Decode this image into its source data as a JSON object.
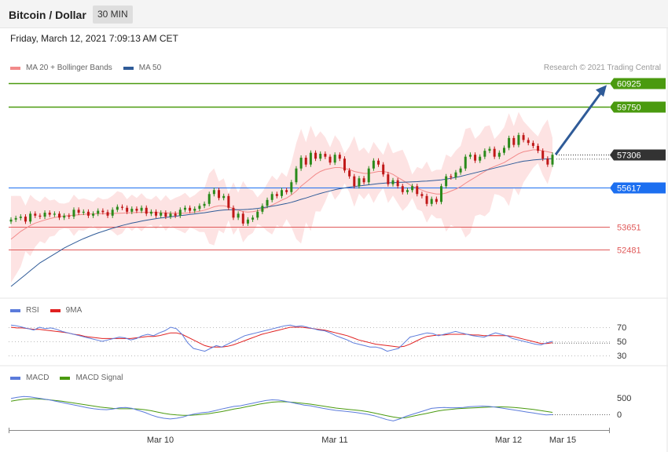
{
  "header": {
    "title": "Bitcoin / Dollar",
    "timeframe": "30 MIN"
  },
  "timestamp": "Friday, March 12, 2021 7:09:13 AM CET",
  "credit": "Research © 2021 Trading Central",
  "colors": {
    "ma20": "#f28a8a",
    "ma50": "#2f5b98",
    "bands": "#fde3e3",
    "resistance": "#4a9a0f",
    "pivot": "#1c6ff0",
    "support": "#e05a5a",
    "last": "#333333",
    "rsi": "#5b7bdb",
    "rsi_ma": "#e02020",
    "macd": "#5b7bdb",
    "signal": "#4a9a0f",
    "candle_up": "#2a8a1a",
    "candle_down": "#c01818",
    "arrow": "#2f5b98"
  },
  "price_legend": [
    {
      "label": "MA 20 + Bollinger Bands",
      "color": "#f28a8a"
    },
    {
      "label": "MA 50",
      "color": "#2f5b98"
    }
  ],
  "rsi_legend": [
    {
      "label": "RSI",
      "color": "#5b7bdb"
    },
    {
      "label": "9MA",
      "color": "#e02020"
    }
  ],
  "macd_legend": [
    {
      "label": "MACD",
      "color": "#5b7bdb"
    },
    {
      "label": "MACD Signal",
      "color": "#4a9a0f"
    }
  ],
  "chart_data": [
    {
      "type": "candlestick",
      "name": "price",
      "levels": [
        {
          "value": 60925,
          "label": "60925",
          "kind": "resistance"
        },
        {
          "value": 59750,
          "label": "59750",
          "kind": "resistance"
        },
        {
          "value": 57306,
          "label": "57306",
          "kind": "last"
        },
        {
          "value": 55617,
          "label": "55617",
          "kind": "pivot"
        },
        {
          "value": 53651,
          "label": "53651",
          "kind": "support"
        },
        {
          "value": 52481,
          "label": "52481",
          "kind": "support"
        }
      ],
      "close": [
        54000,
        54080,
        54150,
        53900,
        54300,
        54200,
        54150,
        54350,
        54250,
        54300,
        54100,
        54200,
        54150,
        54500,
        54350,
        54400,
        54200,
        54300,
        54450,
        54380,
        54200,
        54500,
        54650,
        54600,
        54400,
        54550,
        54450,
        54600,
        54300,
        54400,
        54200,
        54350,
        54150,
        54300,
        54200,
        54500,
        54600,
        54450,
        54550,
        54700,
        54800,
        55300,
        55500,
        55100,
        55200,
        54600,
        54100,
        54300,
        53800,
        54000,
        54100,
        54400,
        54700,
        55000,
        55300,
        55200,
        55500,
        55400,
        55900,
        56600,
        57150,
        56800,
        57400,
        57100,
        57350,
        57200,
        56900,
        57300,
        57100,
        56500,
        56200,
        55700,
        56100,
        55900,
        56600,
        57000,
        56800,
        56300,
        55800,
        56000,
        55700,
        55400,
        55500,
        55700,
        55300,
        55200,
        54800,
        55050,
        54900,
        55700,
        56200,
        56150,
        56400,
        56600,
        57200,
        57300,
        57000,
        57200,
        57500,
        57600,
        57200,
        57400,
        57650,
        58150,
        57800,
        58300,
        58050,
        57900,
        57750,
        57500,
        57100,
        56800,
        57300
      ],
      "ma20": [
        53000,
        53200,
        53400,
        53550,
        53700,
        53820,
        53900,
        53980,
        54050,
        54100,
        54150,
        54180,
        54200,
        54220,
        54240,
        54260,
        54280,
        54290,
        54300,
        54300,
        54300,
        54310,
        54320,
        54330,
        54340,
        54350,
        54360,
        54370,
        54370,
        54370,
        54360,
        54350,
        54340,
        54330,
        54320,
        54320,
        54330,
        54350,
        54380,
        54420,
        54480,
        54560,
        54650,
        54700,
        54700,
        54650,
        54560,
        54480,
        54400,
        54380,
        54400,
        54450,
        54520,
        54620,
        54740,
        54860,
        54990,
        55100,
        55250,
        55450,
        55700,
        55900,
        56100,
        56300,
        56450,
        56550,
        56600,
        56650,
        56650,
        56600,
        56550,
        56450,
        56400,
        56350,
        56350,
        56400,
        56450,
        56450,
        56400,
        56300,
        56150,
        56000,
        55850,
        55700,
        55600,
        55500,
        55400,
        55350,
        55300,
        55300,
        55350,
        55450,
        55550,
        55680,
        55850,
        56000,
        56150,
        56300,
        56450,
        56600,
        56700,
        56800,
        56900,
        57050,
        57200,
        57350,
        57450,
        57500,
        57550,
        57550,
        57500,
        57450,
        57400
      ],
      "ma50": [
        50600,
        50800,
        51000,
        51200,
        51400,
        51600,
        51800,
        51950,
        52100,
        52250,
        52400,
        52550,
        52680,
        52800,
        52920,
        53030,
        53130,
        53230,
        53320,
        53400,
        53480,
        53560,
        53630,
        53700,
        53760,
        53820,
        53870,
        53920,
        53970,
        54010,
        54050,
        54080,
        54110,
        54140,
        54170,
        54200,
        54230,
        54260,
        54290,
        54320,
        54350,
        54390,
        54430,
        54460,
        54490,
        54500,
        54500,
        54500,
        54510,
        54520,
        54540,
        54570,
        54600,
        54640,
        54680,
        54720,
        54770,
        54820,
        54880,
        54950,
        55030,
        55100,
        55180,
        55260,
        55330,
        55400,
        55460,
        55520,
        55570,
        55610,
        55650,
        55680,
        55710,
        55740,
        55770,
        55800,
        55830,
        55850,
        55870,
        55880,
        55890,
        55900,
        55910,
        55920,
        55930,
        55950,
        55960,
        55980,
        56000,
        56020,
        56060,
        56100,
        56150,
        56200,
        56260,
        56320,
        56380,
        56440,
        56500,
        56560,
        56620,
        56680,
        56740,
        56800,
        56860,
        56920,
        56970,
        57000,
        57030,
        57050,
        57070,
        57090,
        57100
      ]
    },
    {
      "type": "line",
      "name": "rsi",
      "y_ticks": [
        "70",
        "50",
        "30"
      ],
      "rsi": [
        73,
        72,
        70,
        68,
        66,
        70,
        68,
        69,
        67,
        64,
        62,
        60,
        58,
        56,
        54,
        52,
        50,
        52,
        54,
        56,
        55,
        52,
        54,
        58,
        60,
        58,
        62,
        65,
        70,
        68,
        60,
        48,
        40,
        38,
        36,
        40,
        44,
        42,
        46,
        50,
        54,
        58,
        60,
        62,
        64,
        66,
        68,
        70,
        72,
        73,
        71,
        72,
        70,
        68,
        66,
        65,
        62,
        58,
        55,
        52,
        48,
        46,
        44,
        42,
        42,
        40,
        36,
        38,
        40,
        48,
        56,
        58,
        60,
        62,
        61,
        58,
        60,
        62,
        64,
        62,
        60,
        58,
        57,
        56,
        59,
        62,
        60,
        58,
        54,
        52,
        50,
        48,
        46,
        45,
        48,
        50
      ],
      "rsi_ma": [
        70,
        69,
        69,
        68,
        67,
        67,
        66,
        65,
        64,
        63,
        62,
        60,
        59,
        57,
        56,
        55,
        54,
        54,
        54,
        54,
        54,
        54,
        55,
        56,
        57,
        57,
        58,
        60,
        62,
        62,
        60,
        56,
        52,
        48,
        44,
        42,
        42,
        42,
        43,
        45,
        48,
        51,
        54,
        57,
        60,
        62,
        64,
        66,
        68,
        70,
        70,
        70,
        69,
        68,
        67,
        66,
        64,
        62,
        60,
        58,
        55,
        52,
        50,
        48,
        46,
        45,
        44,
        43,
        42,
        43,
        46,
        50,
        54,
        57,
        58,
        59,
        59,
        60,
        60,
        60,
        60,
        59,
        59,
        58,
        58,
        58,
        58,
        58,
        57,
        55,
        53,
        51,
        49,
        47,
        47,
        48
      ]
    },
    {
      "type": "line",
      "name": "macd",
      "y_ticks": [
        "500",
        "0"
      ],
      "x_ticks": [
        "Mar 10",
        "Mar 11",
        "Mar 12",
        "Mar 15"
      ],
      "macd": [
        480,
        520,
        540,
        530,
        500,
        470,
        440,
        400,
        360,
        320,
        280,
        240,
        200,
        170,
        150,
        140,
        160,
        200,
        210,
        180,
        120,
        60,
        -20,
        -80,
        -120,
        -140,
        -120,
        -80,
        -20,
        20,
        50,
        70,
        110,
        160,
        200,
        240,
        260,
        300,
        340,
        380,
        420,
        440,
        430,
        400,
        360,
        320,
        280,
        260,
        220,
        180,
        150,
        120,
        100,
        80,
        60,
        30,
        0,
        -40,
        -100,
        -160,
        -200,
        -140,
        -60,
        0,
        60,
        120,
        180,
        200,
        210,
        200,
        200,
        210,
        230,
        240,
        250,
        240,
        220,
        190,
        160,
        130,
        100,
        70,
        40,
        10,
        -20,
        -10
      ],
      "signal": [
        400,
        430,
        460,
        470,
        470,
        460,
        440,
        420,
        400,
        370,
        340,
        310,
        280,
        250,
        220,
        200,
        180,
        170,
        170,
        170,
        160,
        140,
        110,
        70,
        30,
        0,
        -20,
        -30,
        -30,
        -20,
        0,
        20,
        50,
        80,
        120,
        160,
        190,
        230,
        270,
        310,
        340,
        370,
        380,
        380,
        370,
        350,
        330,
        310,
        280,
        250,
        220,
        190,
        170,
        150,
        130,
        110,
        80,
        40,
        0,
        -40,
        -80,
        -110,
        -100,
        -60,
        -20,
        20,
        60,
        100,
        130,
        150,
        170,
        180,
        190,
        200,
        210,
        220,
        225,
        225,
        220,
        210,
        190,
        170,
        150,
        120,
        90,
        60
      ]
    }
  ]
}
